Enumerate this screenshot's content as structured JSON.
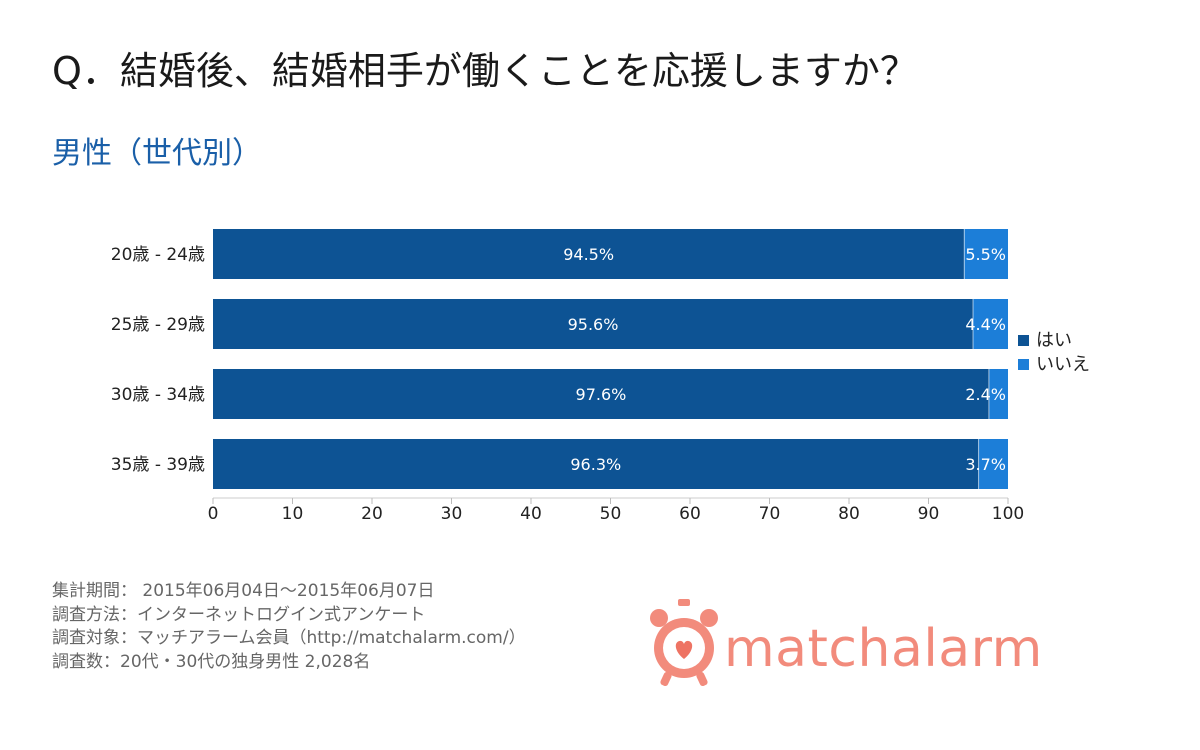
{
  "question": "Q．結婚後、結婚相手が働くことを応援しますか？",
  "subtitle": "男性（世代別）",
  "colors": {
    "yes": "#0d5394",
    "no": "#1c7ed8",
    "subtitle": "#1a5fa8",
    "logo": "#f28b7c",
    "logo_dark": "#ee7363"
  },
  "chart_data": {
    "type": "bar",
    "orientation": "horizontal",
    "stacked": true,
    "categories": [
      "20歳 - 24歳",
      "25歳 - 29歳",
      "30歳 - 34歳",
      "35歳 - 39歳"
    ],
    "series": [
      {
        "name": "はい",
        "values": [
          94.5,
          95.6,
          97.6,
          96.3
        ],
        "labels": [
          "94.5%",
          "95.6%",
          "97.6%",
          "96.3%"
        ]
      },
      {
        "name": "いいえ",
        "values": [
          5.5,
          4.4,
          2.4,
          3.7
        ],
        "labels": [
          "5.5%",
          "4.4%",
          "2.4%",
          "3.7%"
        ]
      }
    ],
    "xlim": [
      0,
      100
    ],
    "xticks": [
      0,
      10,
      20,
      30,
      40,
      50,
      60,
      70,
      80,
      90,
      100
    ],
    "legend": "right",
    "grid": false
  },
  "footer": {
    "period": "集計期間： 2015年06月04日～2015年06月07日",
    "method": "調査方法：インターネットログイン式アンケート",
    "target": "調査対象：マッチアラーム会員（http://matchalarm.com/）",
    "count": "調査数：20代・30代の独身男性 2,028名"
  },
  "logo": {
    "part1": "match",
    "part2": "alarm"
  }
}
